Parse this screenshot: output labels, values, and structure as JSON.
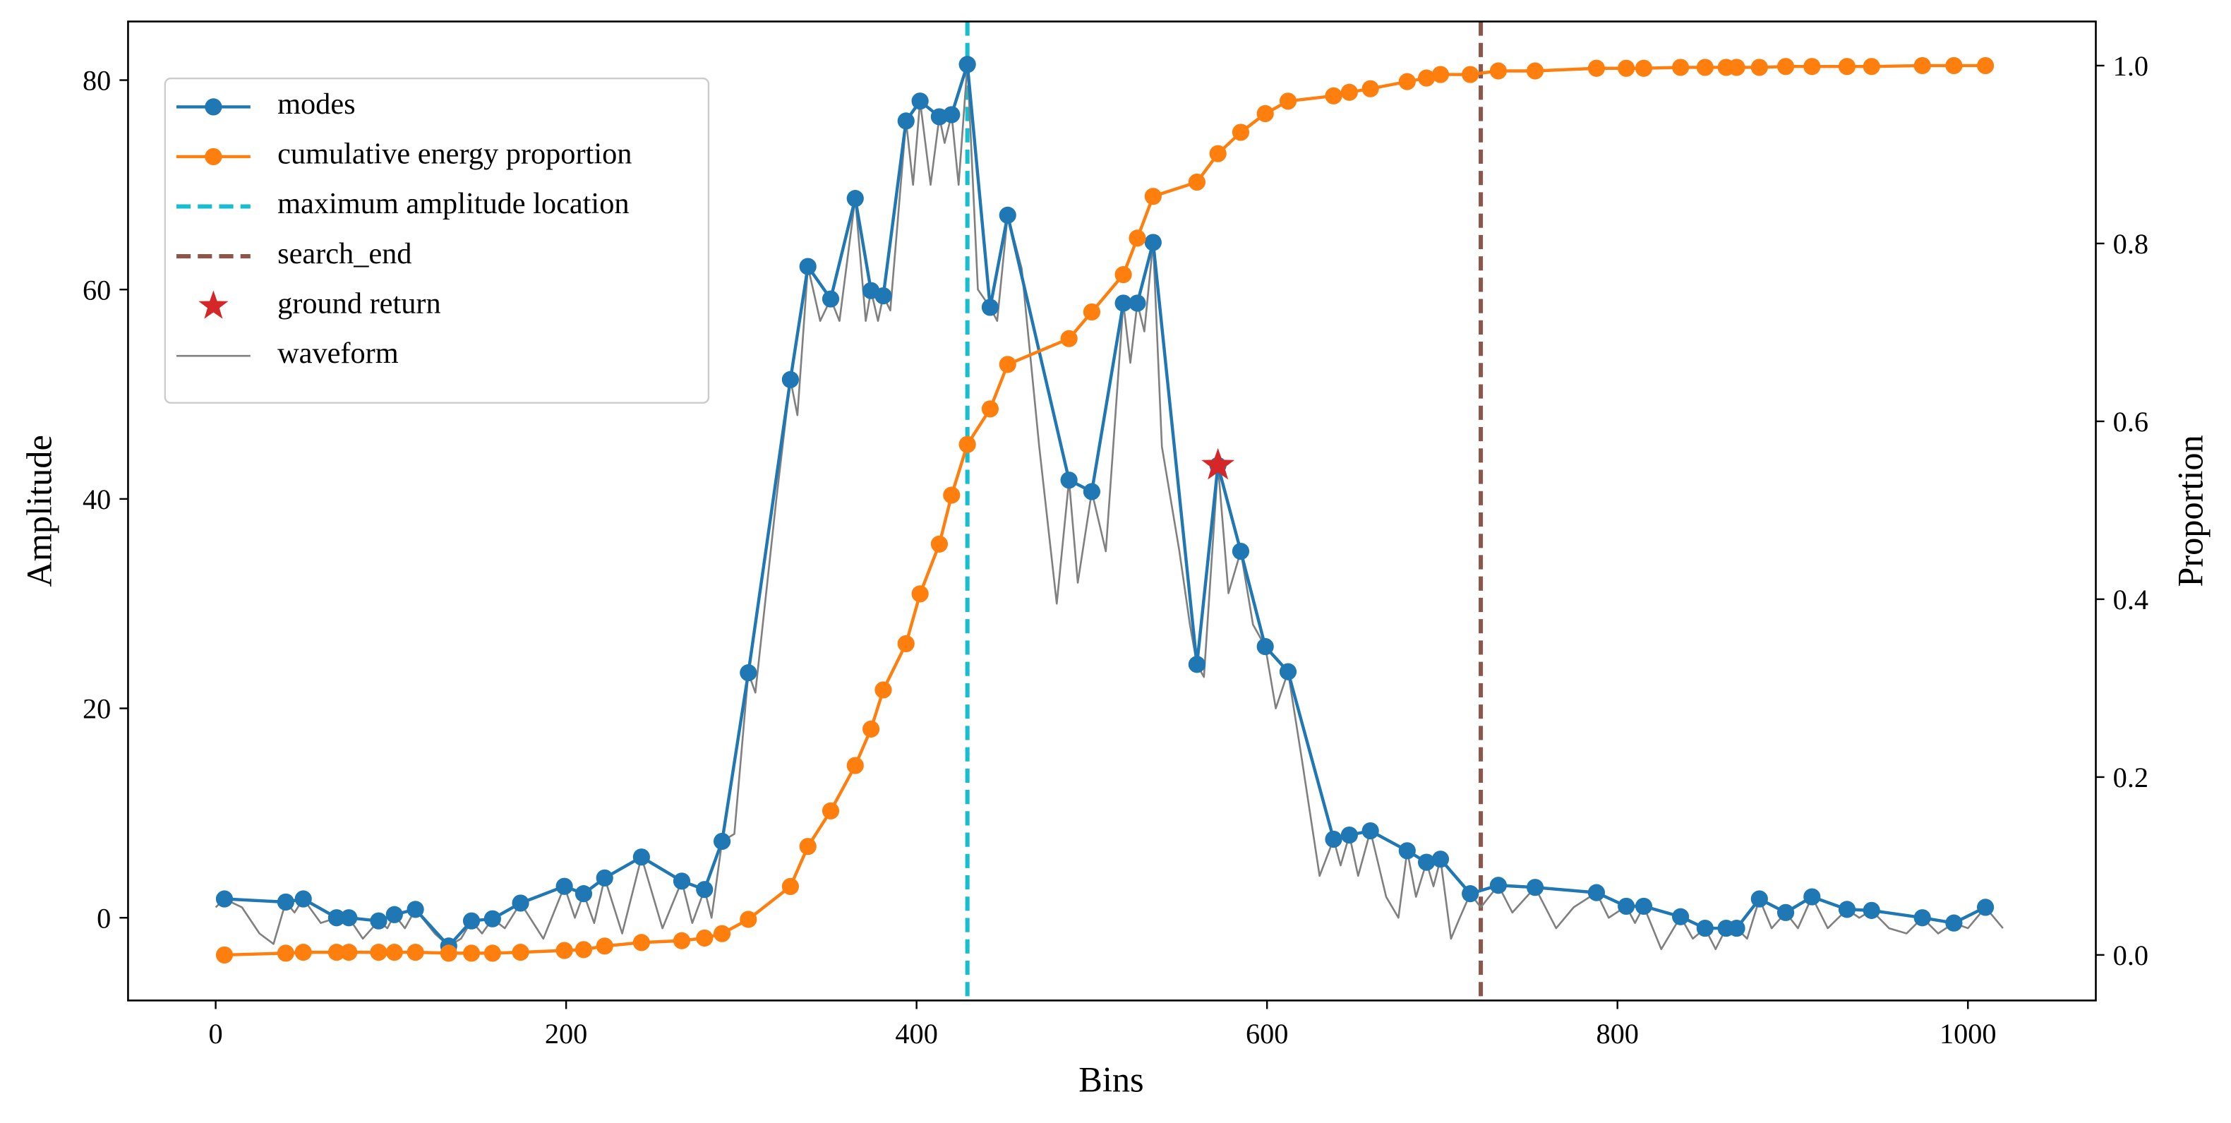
{
  "chart_data": {
    "type": "line",
    "xlabel": "Bins",
    "ylabel": "Amplitude",
    "y2label": "Proportion",
    "xlim": [
      -50,
      1073
    ],
    "xticks": [
      0,
      200,
      400,
      600,
      800,
      1000
    ],
    "ylim": [
      -7.9,
      85.6
    ],
    "yticks": [
      0,
      20,
      40,
      60,
      80
    ],
    "y2lim": [
      -0.0512,
      1.0496
    ],
    "y2ticks": [
      {
        "value": 0,
        "label": "0.0"
      },
      0.2,
      0.4,
      0.6,
      0.8,
      {
        "value": 1,
        "label": "1.0"
      }
    ],
    "legend": "upper left",
    "grid": false,
    "series": [
      {
        "name": "modes",
        "color": "#1f77b4",
        "marker": "circle",
        "x": [
          5,
          40,
          50,
          69,
          76,
          93,
          102,
          114,
          133,
          146,
          158,
          174,
          199,
          210,
          222,
          243,
          266,
          279,
          289,
          304,
          328,
          338,
          351,
          365,
          374,
          381,
          394,
          402,
          413,
          420,
          429,
          442,
          452,
          487,
          500,
          518,
          526,
          535,
          560,
          572,
          585,
          599,
          612,
          638,
          647,
          659,
          680,
          691,
          699,
          716,
          732,
          753,
          788,
          805,
          815,
          836,
          850,
          862,
          868,
          881,
          896,
          911,
          931,
          945,
          974,
          992,
          1010
        ],
        "values": [
          1.8,
          1.5,
          1.8,
          0,
          0,
          -0.3,
          0.3,
          0.8,
          -2.7,
          -0.3,
          -0.1,
          1.4,
          3.0,
          2.3,
          3.8,
          5.8,
          3.5,
          2.7,
          7.3,
          23.4,
          51.4,
          62.2,
          59.1,
          68.7,
          59.9,
          59.4,
          76.1,
          78.0,
          76.5,
          76.7,
          81.5,
          58.3,
          67.1,
          41.8,
          40.7,
          58.7,
          58.7,
          64.5,
          24.2,
          43.2,
          35.0,
          25.9,
          23.5,
          7.5,
          7.9,
          8.3,
          6.4,
          5.3,
          5.6,
          2.3,
          3.1,
          2.9,
          2.4,
          1.1,
          1.1,
          0.1,
          -1.0,
          -1.0,
          -1.0,
          1.8,
          0.5,
          2.0,
          0.8,
          0.7,
          0,
          -0.5,
          1.0
        ]
      },
      {
        "name": "cumulative energy proportion",
        "color": "#ff7f0e",
        "marker": "circle",
        "axis": "y2",
        "x": [
          5,
          40,
          50,
          69,
          76,
          93,
          102,
          114,
          133,
          146,
          158,
          174,
          199,
          210,
          222,
          243,
          266,
          279,
          289,
          304,
          328,
          338,
          351,
          365,
          374,
          381,
          394,
          402,
          413,
          420,
          429,
          442,
          452,
          487,
          500,
          518,
          526,
          535,
          560,
          572,
          585,
          599,
          612,
          638,
          647,
          659,
          680,
          691,
          699,
          716,
          732,
          753,
          788,
          805,
          815,
          836,
          850,
          862,
          868,
          881,
          896,
          911,
          931,
          945,
          974,
          992,
          1010
        ],
        "values": [
          0,
          0.002,
          0.003,
          0.003,
          0.003,
          0.003,
          0.003,
          0.003,
          0.002,
          0.002,
          0.002,
          0.003,
          0.005,
          0.006,
          0.01,
          0.014,
          0.016,
          0.019,
          0.024,
          0.04,
          0.077,
          0.122,
          0.162,
          0.213,
          0.254,
          0.298,
          0.35,
          0.406,
          0.462,
          0.517,
          0.574,
          0.614,
          0.664,
          0.693,
          0.723,
          0.765,
          0.806,
          0.853,
          0.869,
          0.901,
          0.925,
          0.946,
          0.96,
          0.966,
          0.97,
          0.974,
          0.982,
          0.986,
          0.99,
          0.99,
          0.994,
          0.994,
          0.997,
          0.997,
          0.997,
          0.998,
          0.998,
          0.998,
          0.998,
          0.998,
          0.999,
          0.999,
          0.999,
          0.999,
          1.0,
          1.0,
          1.0
        ]
      },
      {
        "name": "maximum amplitude location",
        "color": "#17becf",
        "linestyle": "dashed",
        "vline": 429
      },
      {
        "name": "search_end",
        "color": "#8c564b",
        "linestyle": "dashed",
        "vline": 722
      },
      {
        "name": "ground return",
        "color": "#d62728",
        "marker": "star",
        "x": [
          572
        ],
        "values": [
          43.2
        ]
      },
      {
        "name": "waveform",
        "color": "#808080",
        "x": [
          0,
          5,
          15,
          25,
          33,
          40,
          45,
          50,
          60,
          69,
          76,
          84,
          93,
          98,
          102,
          108,
          114,
          125,
          133,
          140,
          146,
          152,
          158,
          165,
          174,
          187,
          199,
          205,
          210,
          216,
          222,
          232,
          243,
          255,
          266,
          272,
          279,
          283,
          289,
          296,
          304,
          308,
          320,
          328,
          332,
          338,
          345,
          351,
          356,
          365,
          371,
          374,
          378,
          381,
          385,
          394,
          398,
          402,
          408,
          413,
          416,
          420,
          424,
          429,
          435,
          442,
          446,
          452,
          460,
          470,
          480,
          487,
          492,
          500,
          508,
          518,
          522,
          526,
          530,
          535,
          540,
          550,
          556,
          560,
          564,
          572,
          578,
          585,
          592,
          599,
          605,
          612,
          620,
          630,
          638,
          642,
          647,
          652,
          659,
          668,
          675,
          680,
          685,
          691,
          695,
          699,
          705,
          710,
          716,
          722,
          732,
          740,
          753,
          765,
          775,
          788,
          795,
          805,
          810,
          815,
          825,
          836,
          843,
          850,
          856,
          862,
          868,
          874,
          881,
          888,
          896,
          903,
          911,
          920,
          931,
          938,
          945,
          955,
          965,
          974,
          983,
          992,
          1000,
          1010,
          1020
        ],
        "values": [
          1.0,
          1.8,
          1.0,
          -1.5,
          -2.5,
          1.5,
          0.5,
          1.8,
          -0.5,
          0,
          0,
          -2,
          -0.3,
          -1,
          0.3,
          -1,
          0.8,
          -1.5,
          -2.7,
          -2,
          -0.3,
          -1.5,
          -0.1,
          -1,
          1.4,
          -2,
          3.0,
          0,
          2.3,
          -0.5,
          3.8,
          -1.5,
          5.8,
          -1,
          3.5,
          -0.5,
          2.7,
          0,
          7.3,
          8,
          23.4,
          21.5,
          40,
          51.4,
          48,
          62.2,
          57,
          59.1,
          57,
          68.7,
          57,
          59.9,
          57,
          59.4,
          58,
          76.1,
          70,
          78.0,
          70,
          76.5,
          74,
          76.7,
          70,
          81.5,
          60,
          58.3,
          57,
          67.1,
          62,
          45,
          30,
          41.8,
          32,
          40.7,
          35,
          58.7,
          53,
          58.7,
          56,
          64.5,
          45,
          35,
          28,
          24.2,
          23,
          43.2,
          31,
          35.0,
          28,
          25.9,
          20,
          23.5,
          15,
          4,
          7.5,
          5,
          7.9,
          4,
          8.3,
          2,
          0,
          6.4,
          2,
          5.3,
          3,
          5.6,
          -2,
          0,
          2.3,
          1,
          3.1,
          0.5,
          2.9,
          -1,
          1,
          2.4,
          0,
          1.1,
          -0.5,
          1.1,
          -3,
          0.1,
          -2,
          -1.0,
          -3,
          -1.0,
          -1.0,
          -2,
          1.8,
          -1,
          0.5,
          -1,
          2.0,
          -1,
          0.8,
          0,
          0.7,
          -1,
          -1.5,
          0,
          -1.5,
          -0.5,
          -1,
          1.0,
          -1
        ]
      }
    ]
  }
}
